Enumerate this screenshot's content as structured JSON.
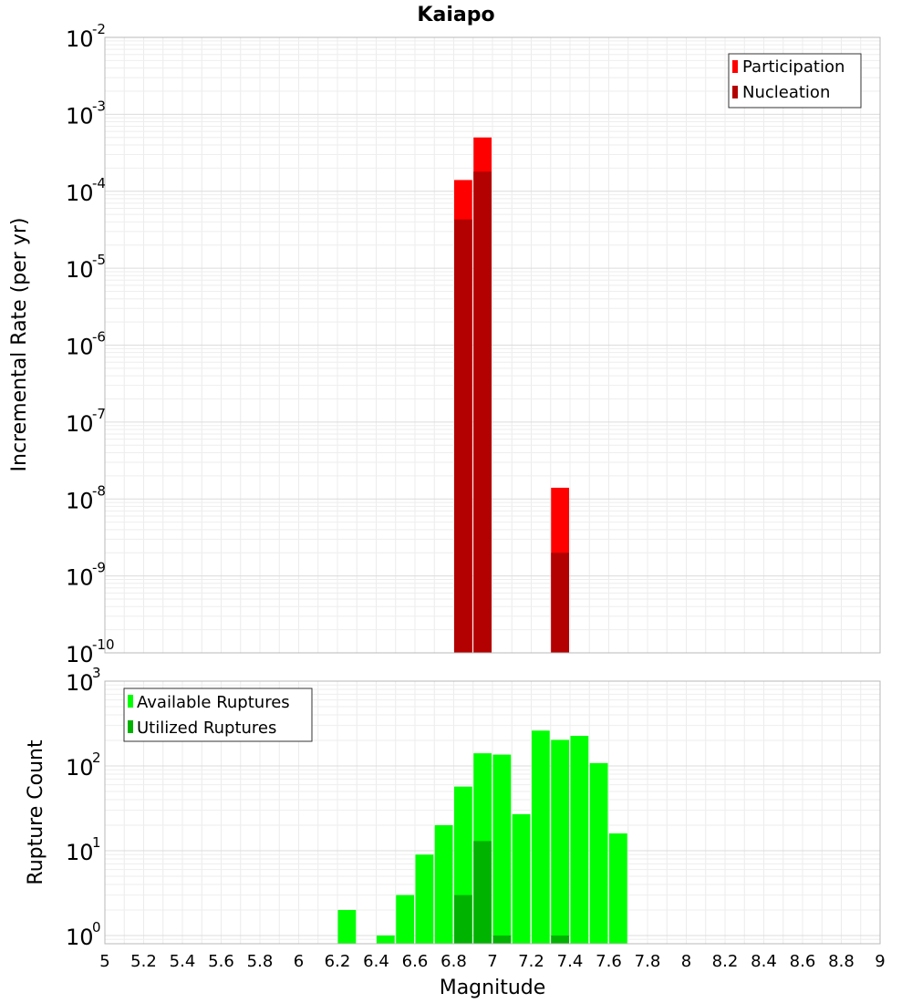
{
  "chart_data": {
    "title": "Kaiapo",
    "xlabel": "Magnitude",
    "xlim": [
      5,
      9
    ],
    "xticks": [
      "5",
      "5.2",
      "5.4",
      "5.6",
      "5.8",
      "6",
      "6.2",
      "6.4",
      "6.6",
      "6.8",
      "7",
      "7.2",
      "7.4",
      "7.6",
      "7.8",
      "8",
      "8.2",
      "8.4",
      "8.6",
      "8.8",
      "9"
    ],
    "bin_width": 0.1,
    "panels": [
      {
        "type": "bar",
        "ylabel": "Incremental Rate (per yr)",
        "yscale": "log",
        "ylim": [
          1e-10,
          0.01
        ],
        "ytick_exponents": [
          -10,
          -9,
          -8,
          -7,
          -6,
          -5,
          -4,
          -3,
          -2
        ],
        "legend": {
          "placement": "top-right",
          "entries": [
            "Participation",
            "Nucleation"
          ]
        },
        "series": [
          {
            "name": "Participation",
            "color": "#ff0000",
            "points": [
              {
                "x": 6.85,
                "y": 0.00014
              },
              {
                "x": 6.95,
                "y": 0.0005
              },
              {
                "x": 7.35,
                "y": 1.4e-08
              }
            ]
          },
          {
            "name": "Nucleation",
            "color": "#b30000",
            "points": [
              {
                "x": 6.85,
                "y": 4.3e-05
              },
              {
                "x": 6.95,
                "y": 0.00018
              },
              {
                "x": 7.35,
                "y": 2e-09
              }
            ]
          }
        ]
      },
      {
        "type": "bar",
        "ylabel": "Rupture Count",
        "yscale": "log",
        "ylim": [
          0.8,
          1000
        ],
        "ytick_exponents": [
          0,
          1,
          2,
          3
        ],
        "legend": {
          "placement": "top-left",
          "entries": [
            "Available Ruptures",
            "Utilized Ruptures"
          ]
        },
        "series": [
          {
            "name": "Available Ruptures",
            "color": "#00ff00",
            "points": [
              {
                "x": 6.25,
                "y": 2
              },
              {
                "x": 6.45,
                "y": 1
              },
              {
                "x": 6.55,
                "y": 3
              },
              {
                "x": 6.65,
                "y": 9
              },
              {
                "x": 6.75,
                "y": 20
              },
              {
                "x": 6.85,
                "y": 57
              },
              {
                "x": 6.95,
                "y": 141
              },
              {
                "x": 7.05,
                "y": 136
              },
              {
                "x": 7.15,
                "y": 27
              },
              {
                "x": 7.25,
                "y": 261
              },
              {
                "x": 7.35,
                "y": 203
              },
              {
                "x": 7.45,
                "y": 226
              },
              {
                "x": 7.55,
                "y": 108
              },
              {
                "x": 7.65,
                "y": 16
              }
            ]
          },
          {
            "name": "Utilized Ruptures",
            "color": "#00b300",
            "points": [
              {
                "x": 6.85,
                "y": 3
              },
              {
                "x": 6.95,
                "y": 13
              },
              {
                "x": 7.05,
                "y": 1
              },
              {
                "x": 7.35,
                "y": 1
              }
            ]
          }
        ]
      }
    ]
  }
}
